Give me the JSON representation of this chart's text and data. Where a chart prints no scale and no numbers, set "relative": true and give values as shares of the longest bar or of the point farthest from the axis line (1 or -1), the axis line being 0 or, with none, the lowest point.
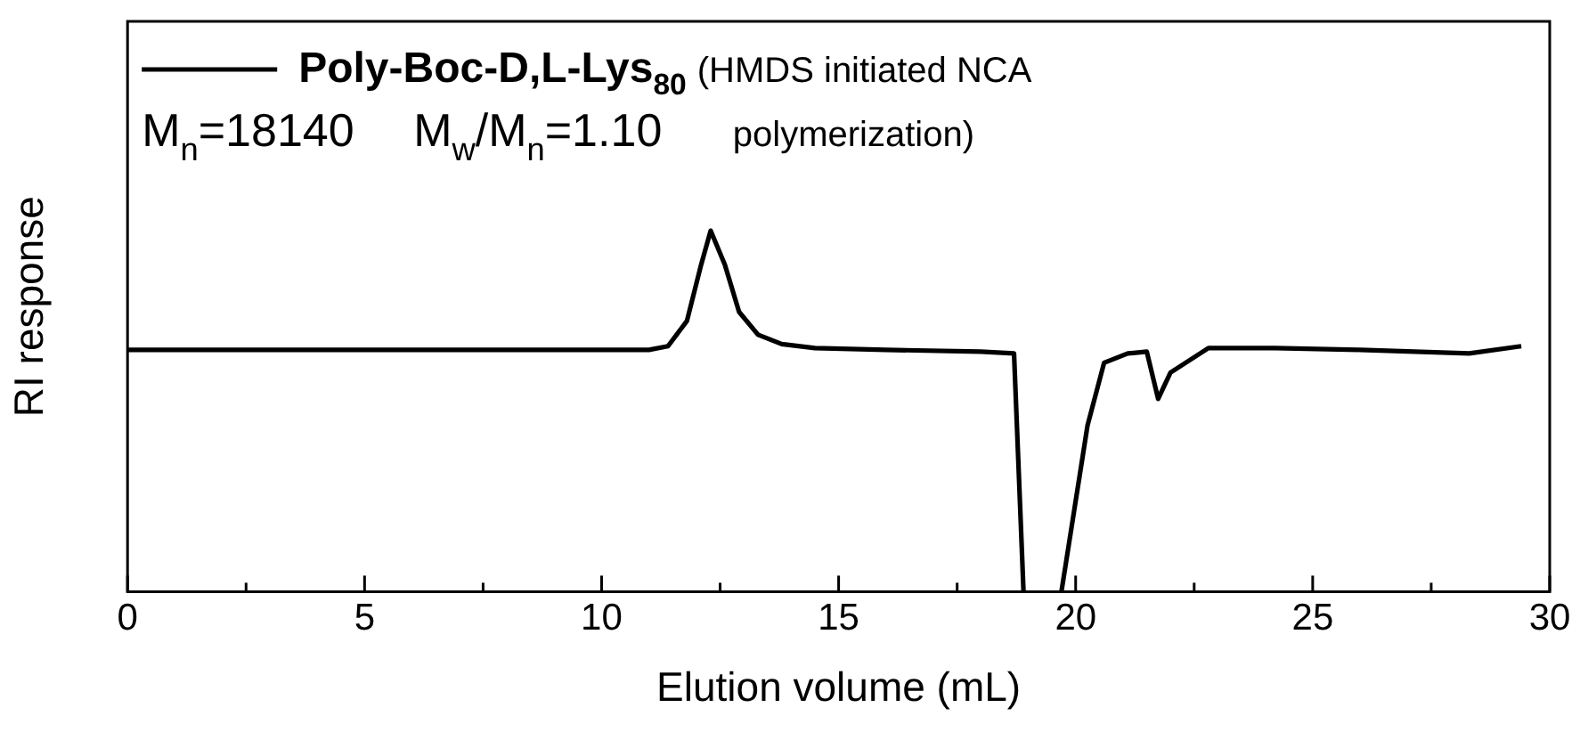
{
  "chart_data": {
    "type": "line",
    "relative": true,
    "xlabel": "Elution volume (mL)",
    "ylabel": "RI response",
    "xlim": [
      0,
      30
    ],
    "xticks": [
      0,
      {
        "value": 2.5,
        "label": null
      },
      5,
      {
        "value": 7.5,
        "label": null
      },
      10,
      {
        "value": 12.5,
        "label": null
      },
      15,
      {
        "value": 17.5,
        "label": null
      },
      20,
      {
        "value": 22.5,
        "label": null
      },
      25,
      {
        "value": 27.5,
        "label": null
      },
      30
    ],
    "legend": "top left",
    "marker": "none",
    "line_style": "solid",
    "grid": false,
    "annotations": [
      "(HMDS initiated NCA polymerization)",
      "M$_{n}$=18140   M$_{w}$/M$_{n}$=1.10"
    ],
    "series": [
      {
        "name": "Poly-Boc-D,L-Lys$_{80}$",
        "color": "#000000",
        "x": [
          0,
          3,
          6,
          9,
          11,
          11.4,
          11.8,
          12.1,
          12.3,
          12.6,
          12.9,
          13.3,
          13.8,
          14.5,
          16,
          18,
          18.7,
          18.9,
          19.3,
          19.7,
          20.25,
          20.6,
          21.1,
          21.5,
          21.74,
          22.0,
          22.8,
          24.2,
          26,
          28.3,
          29.4
        ],
        "values": [
          0.67,
          0.67,
          0.67,
          0.67,
          0.67,
          0.68,
          0.75,
          0.906,
          1.0,
          0.906,
          0.775,
          0.712,
          0.686,
          0.675,
          0.67,
          0.665,
          0.66,
          0,
          null,
          0,
          0.46,
          0.634,
          0.66,
          0.665,
          0.534,
          0.607,
          0.675,
          0.675,
          0.67,
          0.66,
          0.68
        ]
      }
    ]
  }
}
